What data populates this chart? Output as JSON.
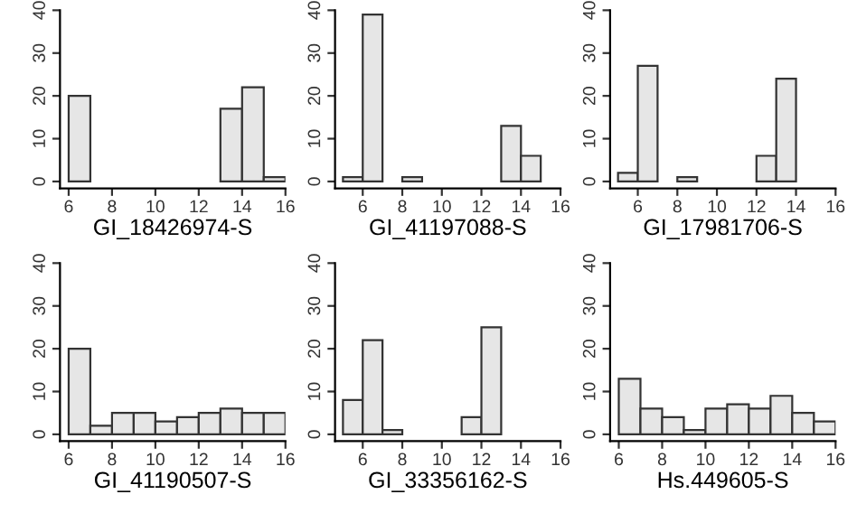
{
  "chart_data": [
    {
      "type": "histogram",
      "xlabel": "GI_18426974-S",
      "bins": [
        6,
        7,
        8,
        9,
        10,
        11,
        12,
        13,
        14,
        15,
        16
      ],
      "values": [
        20,
        0,
        0,
        0,
        0,
        0,
        0,
        17,
        22,
        1
      ],
      "color": "#e6e6e6",
      "xlim": [
        5.6,
        16
      ],
      "xticks": [
        6,
        8,
        10,
        12,
        14,
        16
      ],
      "ylim": [
        -1.6,
        40
      ],
      "yticks": [
        0,
        10,
        20,
        30,
        40
      ],
      "grid": false
    },
    {
      "type": "histogram",
      "xlabel": "GI_41197088-S",
      "bins": [
        5,
        6,
        7,
        8,
        9,
        10,
        11,
        12,
        13,
        14,
        15
      ],
      "values": [
        1,
        39,
        0,
        1,
        0,
        0,
        0,
        0,
        13,
        6
      ],
      "color": "#e6e6e6",
      "xlim": [
        4.6,
        16
      ],
      "xticks": [
        6,
        8,
        10,
        12,
        14,
        16
      ],
      "ylim": [
        -1.6,
        40
      ],
      "yticks": [
        0,
        10,
        20,
        30,
        40
      ],
      "grid": false
    },
    {
      "type": "histogram",
      "xlabel": "GI_17981706-S",
      "bins": [
        5,
        6,
        7,
        8,
        9,
        10,
        11,
        12,
        13,
        14
      ],
      "values": [
        2,
        27,
        0,
        1,
        0,
        0,
        0,
        6,
        24
      ],
      "color": "#e6e6e6",
      "xlim": [
        4.6,
        16
      ],
      "xticks": [
        6,
        8,
        10,
        12,
        14,
        16
      ],
      "ylim": [
        -1.6,
        40
      ],
      "yticks": [
        0,
        10,
        20,
        30,
        40
      ],
      "grid": false
    },
    {
      "type": "histogram",
      "xlabel": "GI_41190507-S",
      "bins": [
        6,
        7,
        8,
        9,
        10,
        11,
        12,
        13,
        14,
        15,
        16
      ],
      "values": [
        20,
        2,
        5,
        5,
        3,
        4,
        5,
        6,
        5,
        5
      ],
      "color": "#e6e6e6",
      "xlim": [
        5.6,
        16
      ],
      "xticks": [
        6,
        8,
        10,
        12,
        14,
        16
      ],
      "ylim": [
        -1.6,
        40
      ],
      "yticks": [
        0,
        10,
        20,
        30,
        40
      ],
      "grid": false
    },
    {
      "type": "histogram",
      "xlabel": "GI_33356162-S",
      "bins": [
        5,
        6,
        7,
        8,
        9,
        10,
        11,
        12,
        13
      ],
      "values": [
        8,
        22,
        1,
        0,
        0,
        0,
        4,
        25
      ],
      "color": "#e6e6e6",
      "xlim": [
        4.6,
        16
      ],
      "xticks": [
        6,
        8,
        10,
        12,
        14,
        16
      ],
      "ylim": [
        -1.6,
        40
      ],
      "yticks": [
        0,
        10,
        20,
        30,
        40
      ],
      "grid": false
    },
    {
      "type": "histogram",
      "xlabel": "Hs.449605-S",
      "bins": [
        6,
        7,
        8,
        9,
        10,
        11,
        12,
        13,
        14,
        15,
        16
      ],
      "values": [
        13,
        6,
        4,
        1,
        6,
        7,
        6,
        9,
        5,
        3
      ],
      "color": "#e6e6e6",
      "xlim": [
        5.6,
        16
      ],
      "xticks": [
        6,
        8,
        10,
        12,
        14,
        16
      ],
      "ylim": [
        -1.6,
        40
      ],
      "yticks": [
        0,
        10,
        20,
        30,
        40
      ],
      "grid": false
    }
  ]
}
